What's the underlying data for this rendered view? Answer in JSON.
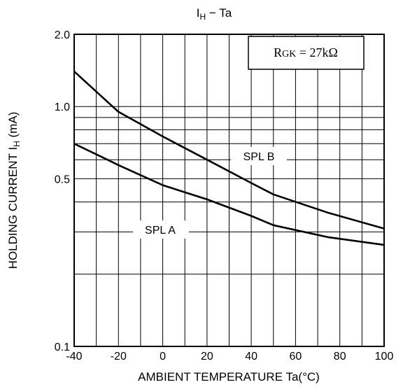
{
  "chart_data": {
    "type": "line",
    "title_main": "I",
    "title_sub": "H",
    "title_rest": " − Ta",
    "xlabel": "AMBIENT TEMPERATURE Ta(°C)",
    "ylabel_main": "HOLDING CURRENT I",
    "ylabel_sub": "H",
    "ylabel_unit": " (mA)",
    "xlim": [
      -40,
      100
    ],
    "ylim": [
      0.1,
      2.0
    ],
    "yscale": "log",
    "grid": true,
    "x_ticks": [
      -40,
      -20,
      0,
      20,
      40,
      60,
      80,
      100
    ],
    "x_tick_labels": [
      "-40",
      "-20",
      "0",
      "20",
      "40",
      "60",
      "80",
      "100"
    ],
    "y_ticks": [
      0.1,
      0.5,
      1.0,
      2.0
    ],
    "y_tick_labels": [
      "0.1",
      "0.5",
      "1.0",
      "2.0"
    ],
    "y_minor_grid": [
      0.2,
      0.3,
      0.4,
      0.6,
      0.7,
      0.8,
      0.9
    ],
    "x_minor_grid": [
      -30,
      -10,
      10,
      30,
      50,
      70,
      90
    ],
    "annotation_main": "R",
    "annotation_sub": "GK",
    "annotation_rest": " = 27kΩ",
    "series": [
      {
        "name": "SPL A",
        "x": [
          -40,
          -25,
          -20,
          0,
          20,
          40,
          50,
          75,
          100
        ],
        "y": [
          0.7,
          0.6,
          0.57,
          0.47,
          0.41,
          0.35,
          0.32,
          0.285,
          0.265
        ]
      },
      {
        "name": "SPL B",
        "x": [
          -40,
          -20,
          0,
          20,
          40,
          50,
          75,
          100
        ],
        "y": [
          1.4,
          0.95,
          0.75,
          0.6,
          0.48,
          0.43,
          0.36,
          0.31
        ]
      }
    ]
  }
}
